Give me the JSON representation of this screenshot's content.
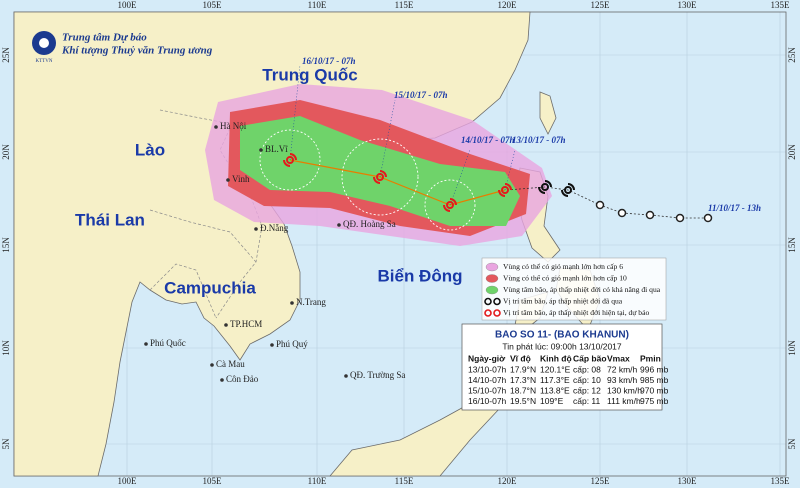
{
  "header": {
    "org_line1": "Trung tâm Dự báo",
    "org_line2": "Khí tượng Thuỷ văn Trung ương",
    "logo_text": "KTTVN"
  },
  "grid": {
    "lon_labels": [
      "100E",
      "105E",
      "110E",
      "115E",
      "120E",
      "125E",
      "130E",
      "135E"
    ],
    "lat_labels": [
      "25N",
      "20N",
      "15N",
      "10N",
      "5N"
    ]
  },
  "places": [
    "Trung Quốc",
    "Lào",
    "Thái Lan",
    "Campuchia",
    "Biển Đông",
    "BL.Vĩ",
    "Hà Nội",
    "Vinh",
    "Đ.Nẵng",
    "QĐ. Hoàng Sa",
    "N.Trang",
    "TP.HCM",
    "Phú Quốc",
    "Cà Mau",
    "Côn Đảo",
    "Phú Quý",
    "QĐ. Trường Sa"
  ],
  "track_labels": [
    "16/10/17 - 07h",
    "15/10/17 - 07h",
    "14/10/17 - 07h",
    "13/10/17 - 07h",
    "11/10/17 - 13h"
  ],
  "legend": {
    "items": [
      "Vùng có thể có gió mạnh lớn hơn cấp 6",
      "Vùng có thể có gió mạnh lớn hơn cấp 10",
      "Vùng tâm bão, áp thấp nhiệt đới có khả năng đi qua",
      "Vị trí tâm bão, áp thấp nhiệt đới đã qua",
      "Vị trí tâm bão, áp thấp nhiệt đới hiện tại, dự báo"
    ]
  },
  "bulletin": {
    "title": "BAO SO 11- (BAO KHANUN)",
    "issued": "Tin phát lúc: 09:00h 13/10/2017",
    "columns": [
      "Ngày-giờ",
      "Vĩ độ",
      "Kinh độ",
      "Cấp bão",
      "Vmax",
      "Pmin"
    ],
    "rows": [
      [
        "13/10-07h",
        "17.9°N",
        "120.1°E",
        "cấp: 08",
        "72 km/h",
        "996 mb"
      ],
      [
        "14/10-07h",
        "17.3°N",
        "117.3°E",
        "cấp: 10",
        "93 km/h",
        "985 mb"
      ],
      [
        "15/10-07h",
        "18.7°N",
        "113.8°E",
        "cấp: 12",
        "130 km/h",
        "970 mb"
      ],
      [
        "16/10-07h",
        "19.5°N",
        "109°E",
        "cấp: 11",
        "111 km/h",
        "975 mb"
      ]
    ]
  }
}
